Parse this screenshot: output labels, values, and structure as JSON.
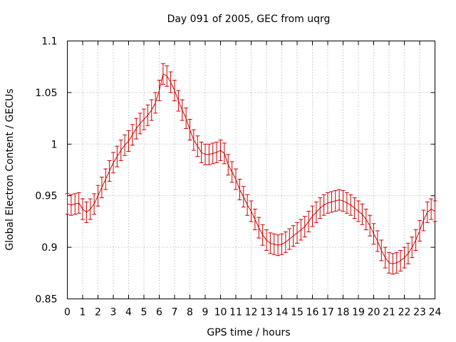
{
  "chart_data": {
    "type": "line",
    "title": "Day 091 of 2005, GEC from uqrg",
    "xlabel": "GPS time / hours",
    "ylabel": "Global Electron Content / GECUs",
    "xlim": [
      0,
      24
    ],
    "ylim": [
      0.85,
      1.1
    ],
    "x_ticks": [
      "0",
      "1",
      "2",
      "3",
      "4",
      "5",
      "6",
      "7",
      "8",
      "9",
      "10",
      "11",
      "12",
      "13",
      "14",
      "15",
      "16",
      "17",
      "18",
      "19",
      "20",
      "21",
      "22",
      "23",
      "24"
    ],
    "y_ticks": [
      "0.85",
      "0.9",
      "0.95",
      "1",
      "1.05",
      "1.1"
    ],
    "grid": true,
    "legend": "none",
    "series": [
      {
        "color": "#cc0000",
        "error_bar": 0.01,
        "x": [
          0,
          0.25,
          0.5,
          0.75,
          1,
          1.25,
          1.5,
          1.75,
          2,
          2.25,
          2.5,
          2.75,
          3,
          3.25,
          3.5,
          3.75,
          4,
          4.25,
          4.5,
          4.75,
          5,
          5.25,
          5.5,
          5.75,
          6,
          6.25,
          6.5,
          6.75,
          7,
          7.25,
          7.5,
          7.75,
          8,
          8.25,
          8.5,
          8.75,
          9,
          9.25,
          9.5,
          9.75,
          10,
          10.25,
          10.5,
          10.75,
          11,
          11.25,
          11.5,
          11.75,
          12,
          12.25,
          12.5,
          12.75,
          13,
          13.25,
          13.5,
          13.75,
          14,
          14.25,
          14.5,
          14.75,
          15,
          15.25,
          15.5,
          15.75,
          16,
          16.25,
          16.5,
          16.75,
          17,
          17.25,
          17.5,
          17.75,
          18,
          18.25,
          18.5,
          18.75,
          19,
          19.25,
          19.5,
          19.75,
          20,
          20.25,
          20.5,
          20.75,
          21,
          21.25,
          21.5,
          21.75,
          22,
          22.25,
          22.5,
          22.75,
          23,
          23.25,
          23.5,
          23.75,
          24
        ],
        "y": [
          0.942,
          0.941,
          0.942,
          0.943,
          0.937,
          0.934,
          0.937,
          0.942,
          0.95,
          0.958,
          0.966,
          0.974,
          0.982,
          0.988,
          0.994,
          0.999,
          1.003,
          1.009,
          1.015,
          1.02,
          1.024,
          1.028,
          1.033,
          1.04,
          1.052,
          1.068,
          1.066,
          1.06,
          1.052,
          1.042,
          1.033,
          1.025,
          1.014,
          1.004,
          0.998,
          0.992,
          0.99,
          0.99,
          0.991,
          0.992,
          0.994,
          0.991,
          0.98,
          0.973,
          0.966,
          0.956,
          0.949,
          0.941,
          0.935,
          0.927,
          0.919,
          0.912,
          0.907,
          0.904,
          0.903,
          0.902,
          0.903,
          0.905,
          0.908,
          0.911,
          0.914,
          0.917,
          0.92,
          0.925,
          0.93,
          0.934,
          0.938,
          0.941,
          0.943,
          0.944,
          0.945,
          0.946,
          0.945,
          0.943,
          0.941,
          0.938,
          0.935,
          0.932,
          0.927,
          0.921,
          0.913,
          0.906,
          0.897,
          0.89,
          0.885,
          0.884,
          0.885,
          0.887,
          0.89,
          0.894,
          0.9,
          0.907,
          0.916,
          0.926,
          0.934,
          0.937,
          0.935
        ]
      }
    ]
  }
}
